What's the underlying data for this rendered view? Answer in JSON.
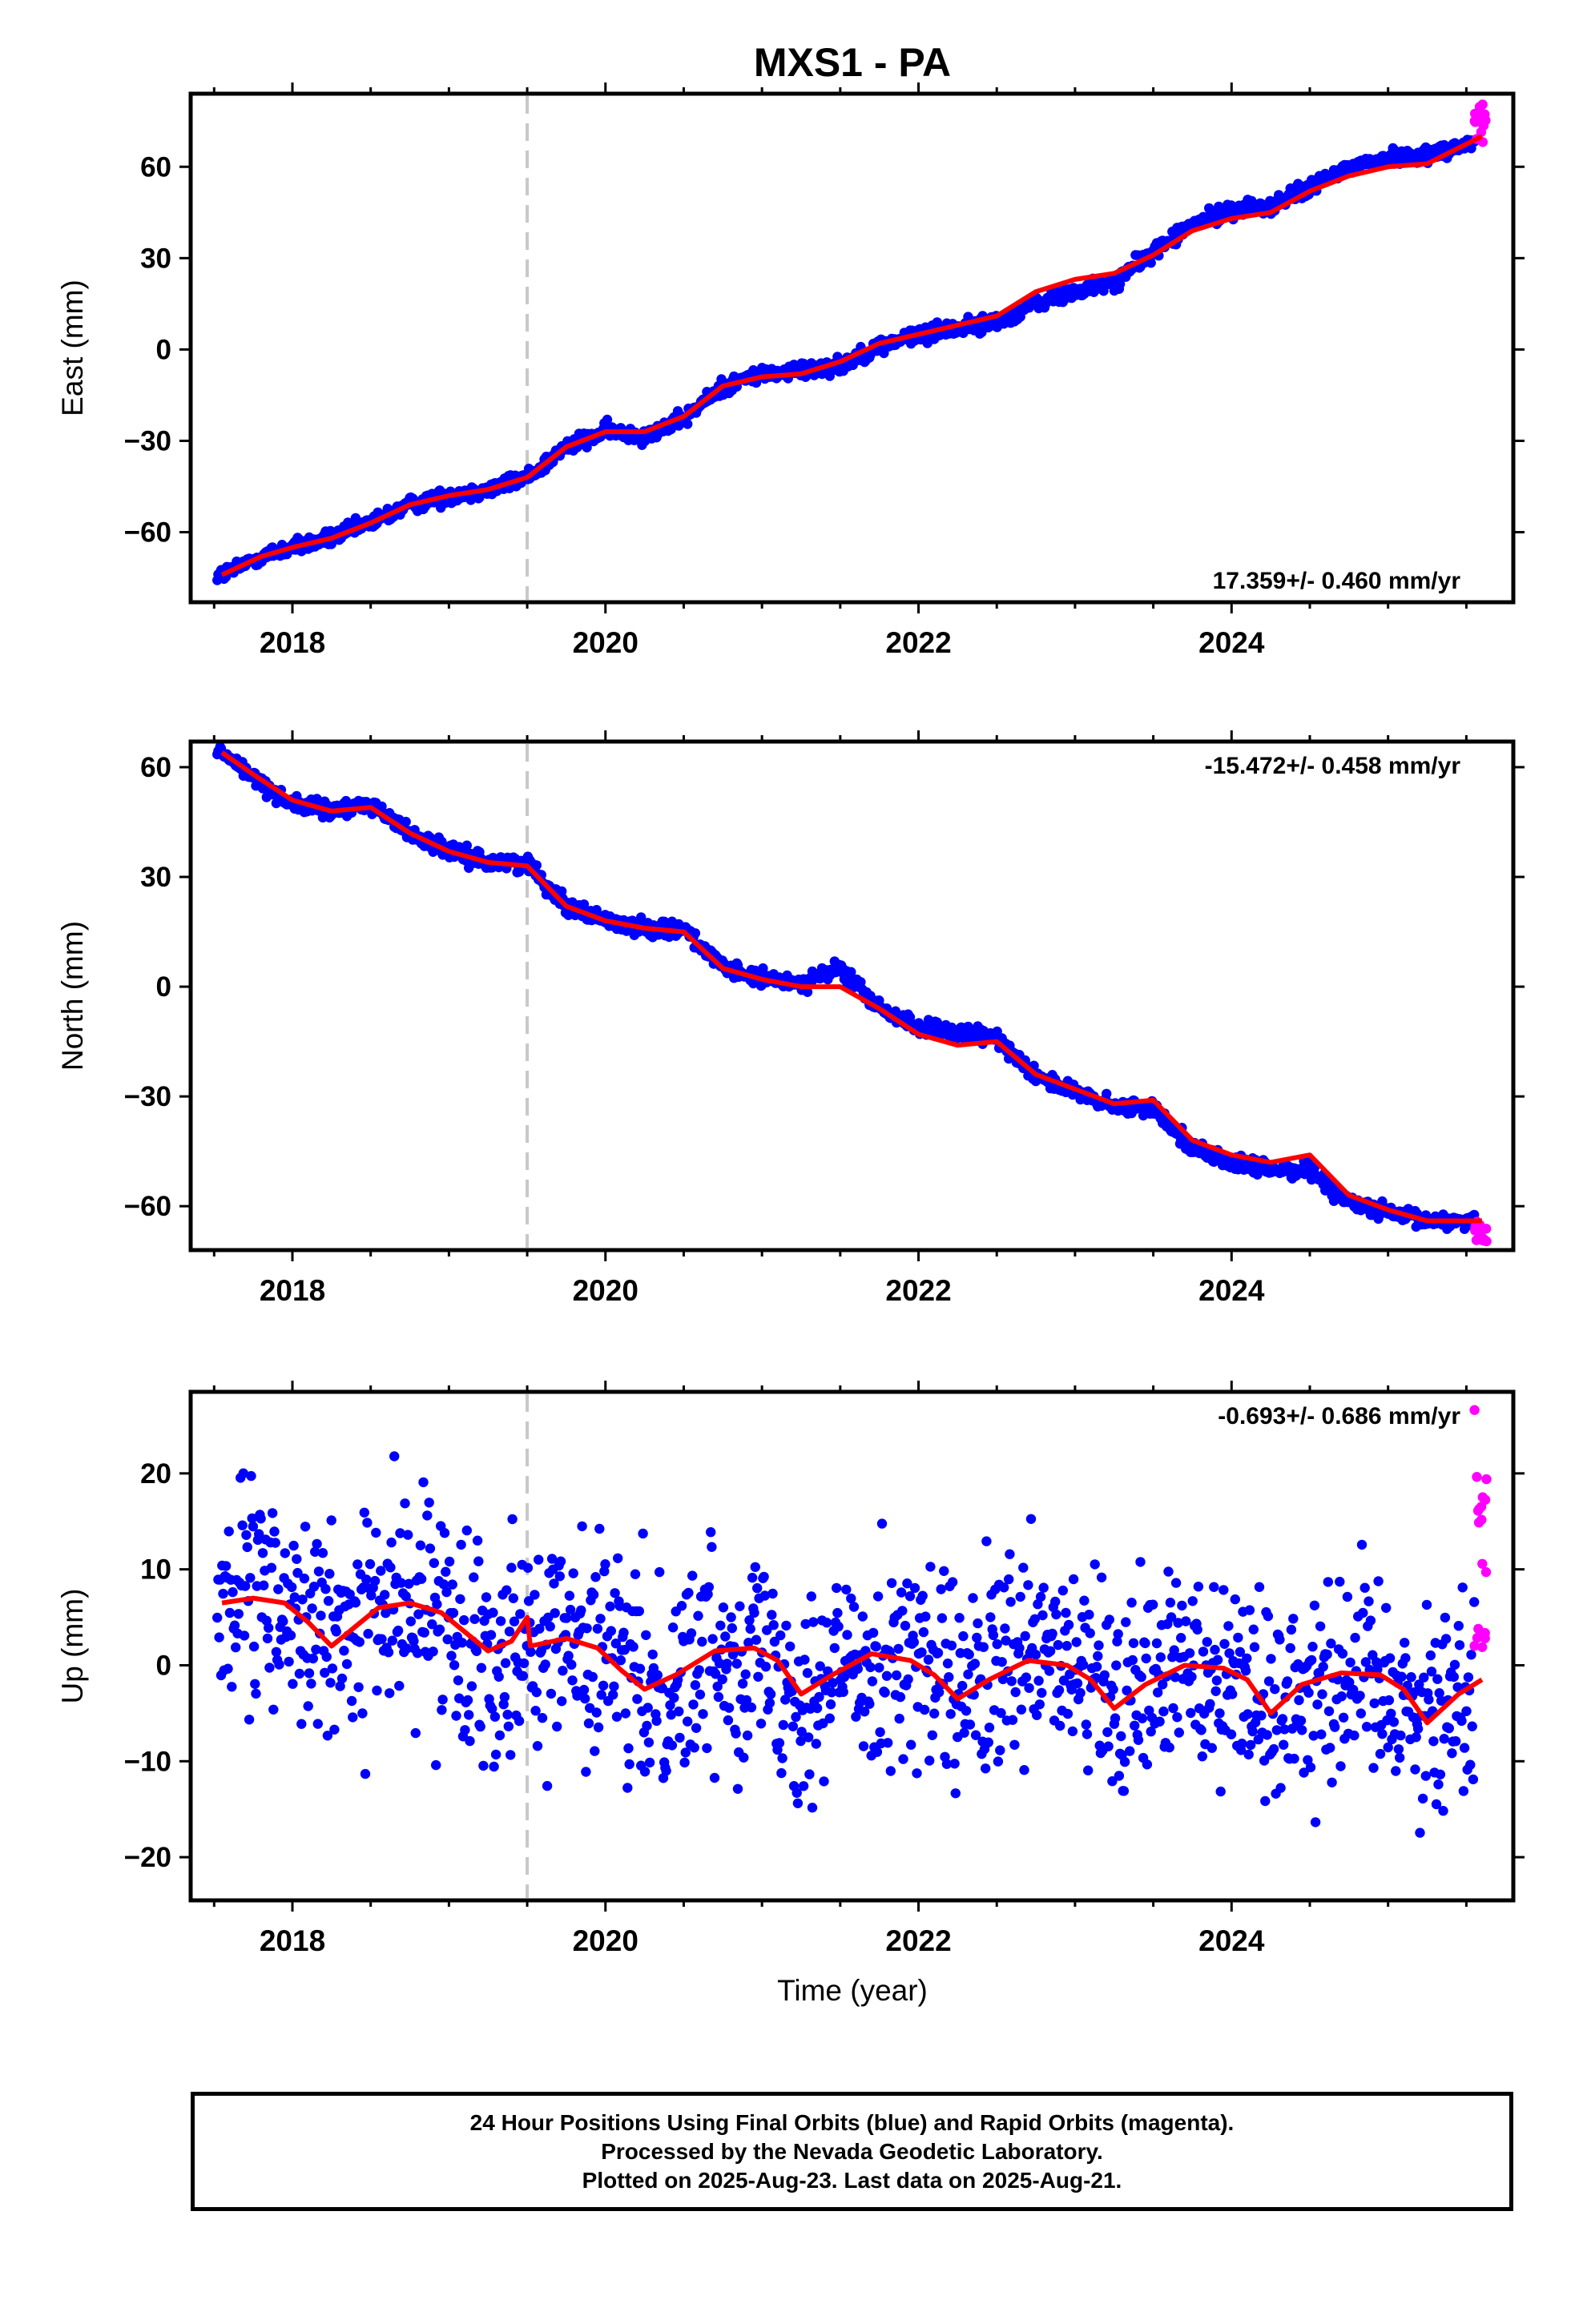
{
  "page": {
    "title": "MXS1 - PA",
    "footer": {
      "line1": "24 Hour Positions Using Final Orbits (blue) and Rapid Orbits (magenta).",
      "line2": "Processed by the Nevada Geodetic Laboratory.",
      "line3": "Plotted on 2025-Aug-23. Last data on 2025-Aug-21."
    }
  },
  "colors": {
    "final_points": "#0000ff",
    "rapid_points": "#ff00ff",
    "model_line": "#ff0000",
    "event_line": "#c8c8c8"
  },
  "chart_data": [
    {
      "type": "scatter",
      "component": "East",
      "title": "MXS1 - PA",
      "xlabel": "",
      "ylabel": "East (mm)",
      "xlim": [
        2017.35,
        2025.8
      ],
      "ylim": [
        -83,
        84
      ],
      "xticks": [
        2018,
        2020,
        2022,
        2024
      ],
      "xtick_labels": [
        "2018",
        "2020",
        "2022",
        "2024"
      ],
      "yticks": [
        -60,
        -30,
        0,
        30,
        60
      ],
      "ytick_labels": [
        "−60",
        "−30",
        "0",
        "30",
        "60"
      ],
      "event_line_x": 2019.5,
      "rate_text": "17.359+/- 0.460 mm/yr",
      "rate_position": "bottom-right",
      "model_curve": {
        "x": [
          2017.55,
          2017.8,
          2018.0,
          2018.25,
          2018.5,
          2018.75,
          2019.0,
          2019.25,
          2019.5,
          2019.75,
          2020.0,
          2020.25,
          2020.5,
          2020.75,
          2021.0,
          2021.25,
          2021.5,
          2021.75,
          2022.0,
          2022.25,
          2022.5,
          2022.75,
          2023.0,
          2023.25,
          2023.5,
          2023.75,
          2024.0,
          2024.25,
          2024.5,
          2024.75,
          2025.0,
          2025.25,
          2025.6
        ],
        "y": [
          -74,
          -68,
          -65,
          -62,
          -57,
          -51,
          -48,
          -46,
          -42,
          -32,
          -27,
          -27,
          -22,
          -12,
          -9,
          -8,
          -4,
          2,
          5,
          8,
          11,
          19,
          23,
          25,
          31,
          39,
          43,
          45,
          52,
          57,
          60,
          61,
          70
        ]
      },
      "final_orbit_series": {
        "trend": [
          [
            2017.55,
            -74
          ],
          [
            2017.8,
            -68
          ],
          [
            2018.0,
            -65
          ],
          [
            2018.25,
            -62
          ],
          [
            2018.5,
            -57
          ],
          [
            2018.75,
            -51
          ],
          [
            2019.0,
            -48
          ],
          [
            2019.25,
            -46
          ],
          [
            2019.5,
            -42
          ],
          [
            2019.75,
            -32
          ],
          [
            2020.0,
            -27
          ],
          [
            2020.25,
            -28
          ],
          [
            2020.5,
            -23
          ],
          [
            2020.75,
            -12
          ],
          [
            2021.0,
            -8
          ],
          [
            2021.25,
            -7
          ],
          [
            2021.5,
            -5
          ],
          [
            2021.75,
            1
          ],
          [
            2022.0,
            5
          ],
          [
            2022.25,
            7
          ],
          [
            2022.5,
            9
          ],
          [
            2022.75,
            15
          ],
          [
            2023.0,
            19
          ],
          [
            2023.25,
            22
          ],
          [
            2023.5,
            32
          ],
          [
            2023.75,
            41
          ],
          [
            2024.0,
            46
          ],
          [
            2024.25,
            47
          ],
          [
            2024.5,
            53
          ],
          [
            2024.75,
            60
          ],
          [
            2025.0,
            63
          ],
          [
            2025.25,
            64
          ],
          [
            2025.55,
            68
          ]
        ],
        "scatter_mm": 2.2,
        "x_range": [
          2017.52,
          2025.55
        ]
      },
      "rapid_orbit_series": {
        "x_range": [
          2025.55,
          2025.63
        ],
        "y_range": [
          68,
          81
        ]
      }
    },
    {
      "type": "scatter",
      "component": "North",
      "title": "",
      "xlabel": "",
      "ylabel": "North (mm)",
      "xlim": [
        2017.35,
        2025.8
      ],
      "ylim": [
        -72,
        67
      ],
      "xticks": [
        2018,
        2020,
        2022,
        2024
      ],
      "xtick_labels": [
        "2018",
        "2020",
        "2022",
        "2024"
      ],
      "yticks": [
        -60,
        -30,
        0,
        30,
        60
      ],
      "ytick_labels": [
        "−60",
        "−30",
        "0",
        "30",
        "60"
      ],
      "event_line_x": 2019.5,
      "rate_text": "-15.472+/- 0.458 mm/yr",
      "rate_position": "top-right",
      "model_curve": {
        "x": [
          2017.55,
          2017.75,
          2018.0,
          2018.25,
          2018.5,
          2018.75,
          2019.0,
          2019.25,
          2019.5,
          2019.75,
          2020.0,
          2020.25,
          2020.5,
          2020.75,
          2021.0,
          2021.25,
          2021.5,
          2021.75,
          2022.0,
          2022.25,
          2022.5,
          2022.75,
          2023.0,
          2023.25,
          2023.5,
          2023.75,
          2024.0,
          2024.25,
          2024.5,
          2024.75,
          2025.0,
          2025.25,
          2025.6
        ],
        "y": [
          64,
          58,
          51,
          48,
          49,
          42,
          37,
          34,
          33,
          22,
          18,
          16,
          15,
          5,
          2,
          0,
          0,
          -6,
          -13,
          -16,
          -15,
          -24,
          -28,
          -32,
          -31,
          -42,
          -46,
          -48,
          -46,
          -57,
          -61,
          -64,
          -64
        ]
      },
      "final_orbit_series": {
        "trend": [
          [
            2017.55,
            64
          ],
          [
            2017.75,
            57
          ],
          [
            2018.0,
            50
          ],
          [
            2018.25,
            48
          ],
          [
            2018.5,
            50
          ],
          [
            2018.75,
            42
          ],
          [
            2019.0,
            37
          ],
          [
            2019.25,
            34
          ],
          [
            2019.5,
            34
          ],
          [
            2019.75,
            22
          ],
          [
            2020.0,
            18
          ],
          [
            2020.25,
            16
          ],
          [
            2020.5,
            16
          ],
          [
            2020.75,
            5
          ],
          [
            2021.0,
            2
          ],
          [
            2021.25,
            1
          ],
          [
            2021.5,
            5
          ],
          [
            2021.75,
            -6
          ],
          [
            2022.0,
            -11
          ],
          [
            2022.25,
            -13
          ],
          [
            2022.5,
            -14
          ],
          [
            2022.75,
            -24
          ],
          [
            2023.0,
            -29
          ],
          [
            2023.25,
            -33
          ],
          [
            2023.5,
            -33
          ],
          [
            2023.75,
            -44
          ],
          [
            2024.0,
            -48
          ],
          [
            2024.25,
            -50
          ],
          [
            2024.5,
            -50
          ],
          [
            2024.75,
            -59
          ],
          [
            2025.0,
            -62
          ],
          [
            2025.25,
            -64
          ],
          [
            2025.55,
            -64
          ]
        ],
        "scatter_mm": 1.8,
        "x_range": [
          2017.52,
          2025.55
        ]
      },
      "rapid_orbit_series": {
        "x_range": [
          2025.55,
          2025.63
        ],
        "y_range": [
          -70,
          -62
        ]
      }
    },
    {
      "type": "scatter",
      "component": "Up",
      "title": "",
      "xlabel": "Time (year)",
      "ylabel": "Up (mm)",
      "xlim": [
        2017.35,
        2025.8
      ],
      "ylim": [
        -24.5,
        28.5
      ],
      "xticks": [
        2018,
        2020,
        2022,
        2024
      ],
      "xtick_labels": [
        "2018",
        "2020",
        "2022",
        "2024"
      ],
      "yticks": [
        -20,
        -10,
        0,
        10,
        20
      ],
      "ytick_labels": [
        "−20",
        "−10",
        "0",
        "10",
        "20"
      ],
      "event_line_x": 2019.5,
      "rate_text": "-0.693+/- 0.686 mm/yr",
      "rate_position": "top-right",
      "model_curve": {
        "x": [
          2017.55,
          2017.75,
          2017.95,
          2018.1,
          2018.25,
          2018.4,
          2018.55,
          2018.75,
          2018.95,
          2019.1,
          2019.25,
          2019.4,
          2019.5,
          2019.52,
          2019.75,
          2019.95,
          2020.1,
          2020.25,
          2020.45,
          2020.7,
          2020.95,
          2021.1,
          2021.25,
          2021.45,
          2021.7,
          2021.95,
          2022.1,
          2022.25,
          2022.45,
          2022.7,
          2022.95,
          2023.1,
          2023.25,
          2023.45,
          2023.7,
          2023.95,
          2024.1,
          2024.25,
          2024.45,
          2024.7,
          2024.95,
          2025.1,
          2025.25,
          2025.45,
          2025.6
        ],
        "y": [
          6.5,
          7.0,
          6.5,
          4.5,
          2.0,
          4.0,
          6.0,
          6.5,
          5.5,
          3.5,
          1.5,
          2.5,
          5.0,
          2.0,
          2.8,
          1.8,
          -0.5,
          -2.5,
          -1.0,
          1.5,
          1.8,
          0.5,
          -3.0,
          -1.0,
          1.2,
          0.5,
          -1.0,
          -3.5,
          -1.5,
          0.5,
          0.0,
          -1.5,
          -4.5,
          -2.0,
          0.0,
          -0.3,
          -1.5,
          -5.0,
          -2.0,
          -0.8,
          -1.0,
          -2.5,
          -6.0,
          -3.0,
          -1.5
        ]
      },
      "final_orbit_series": {
        "follows_model_curve": true,
        "scatter_mm": 4.5,
        "x_range": [
          2017.52,
          2025.55
        ]
      },
      "rapid_orbit_series": {
        "x_range": [
          2025.55,
          2025.63
        ],
        "y_range": [
          0,
          28
        ]
      }
    }
  ]
}
